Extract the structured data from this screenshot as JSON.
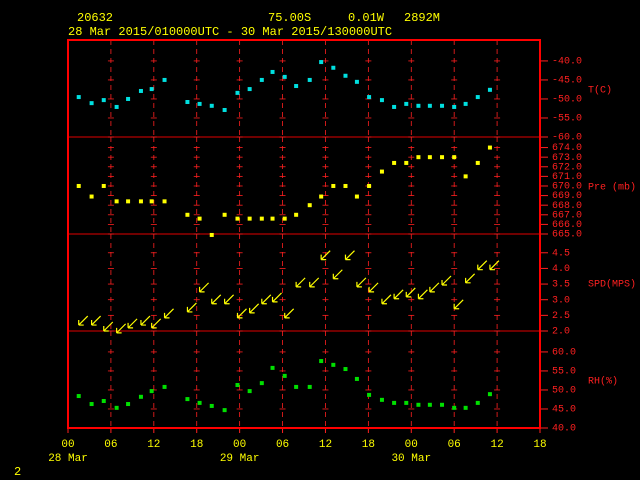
{
  "header": {
    "station": "20632",
    "lat": "75.00S",
    "lon": "0.01W",
    "elev": "2892M",
    "period": "28 Mar 2015/010000UTC - 30 Mar 2015/130000UTC"
  },
  "page_number": "2",
  "x_axis": {
    "xlim": [
      0,
      66
    ],
    "xticks": [
      {
        "value": 0,
        "label": "00"
      },
      {
        "value": 6,
        "label": "06"
      },
      12,
      18,
      {
        "value": 24,
        "label": "00"
      },
      {
        "value": 30,
        "label": "06"
      },
      {
        "value": 36,
        "label": "12"
      },
      {
        "value": 42,
        "label": "18"
      },
      {
        "value": 48,
        "label": "00"
      },
      {
        "value": 54,
        "label": "06"
      },
      {
        "value": 60,
        "label": "12"
      },
      {
        "value": 66,
        "label": "18"
      }
    ],
    "date_labels": [
      {
        "value": 0,
        "label": "28 Mar"
      },
      {
        "value": 24,
        "label": "29 Mar"
      },
      {
        "value": 48,
        "label": "30 Mar"
      }
    ]
  },
  "chart_data": [
    {
      "type": "scatter",
      "ylabel": "T(C)",
      "color": "#00e0e0",
      "ylim": [
        -60,
        -34.5
      ],
      "yticks": [
        {
          "value": -40,
          "label": "-40.0"
        },
        {
          "value": -45,
          "label": "-45.0"
        },
        {
          "value": -50,
          "label": "-50.0"
        },
        {
          "value": -55,
          "label": "-55.0"
        },
        {
          "value": -60,
          "label": "-60.0"
        }
      ],
      "x": [
        1.5,
        3.3,
        5.0,
        6.8,
        8.4,
        10.2,
        11.7,
        13.5,
        16.7,
        18.4,
        20.1,
        21.9,
        23.7,
        25.4,
        27.1,
        28.6,
        30.3,
        31.9,
        33.8,
        35.4,
        37.1,
        38.8,
        40.4,
        42.1,
        43.9,
        45.6,
        47.3,
        49.0,
        50.6,
        52.3,
        54.0,
        55.6,
        57.3,
        59.0
      ],
      "values": [
        -49.5,
        -51.1,
        -50.3,
        -52.1,
        -50.0,
        -47.9,
        -47.4,
        -45.0,
        -50.8,
        -51.3,
        -51.8,
        -52.9,
        -48.4,
        -47.4,
        -45.0,
        -42.9,
        -44.2,
        -46.6,
        -45.0,
        -40.3,
        -41.8,
        -43.9,
        -45.5,
        -49.5,
        -50.3,
        -52.1,
        -51.3,
        -51.8,
        -51.8,
        -51.8,
        -52.1,
        -51.3,
        -49.5,
        -47.6
      ]
    },
    {
      "type": "scatter",
      "ylabel": "Pre (mb)",
      "color": "#ffff00",
      "ylim": [
        665,
        675.1
      ],
      "yticks": [
        {
          "value": 674,
          "label": "674.0"
        },
        {
          "value": 673,
          "label": "673.0"
        },
        {
          "value": 672,
          "label": "672.0"
        },
        {
          "value": 671,
          "label": "671.0"
        },
        {
          "value": 670,
          "label": "670.0"
        },
        {
          "value": 669,
          "label": "669.0"
        },
        {
          "value": 668,
          "label": "668.0"
        },
        {
          "value": 667,
          "label": "667.0"
        },
        {
          "value": 666,
          "label": "666.0"
        },
        {
          "value": 665,
          "label": "665.0"
        }
      ],
      "x": [
        1.5,
        3.3,
        5.0,
        6.8,
        8.4,
        10.2,
        11.7,
        13.5,
        16.7,
        18.4,
        20.1,
        21.9,
        23.7,
        25.4,
        27.1,
        28.6,
        30.3,
        31.9,
        33.8,
        35.4,
        37.1,
        38.8,
        40.4,
        42.1,
        43.9,
        45.6,
        47.3,
        49.0,
        50.6,
        52.3,
        54.0,
        55.6,
        57.3,
        59.0
      ],
      "values": [
        670.0,
        668.9,
        670.0,
        668.4,
        668.4,
        668.4,
        668.4,
        668.4,
        667.0,
        666.6,
        664.9,
        667.0,
        666.6,
        666.6,
        666.6,
        666.6,
        666.6,
        667.0,
        668.0,
        668.9,
        670.0,
        670.0,
        668.9,
        670.0,
        671.5,
        672.4,
        672.4,
        673.0,
        673.0,
        673.0,
        673.0,
        671.0,
        672.4,
        674.0
      ]
    },
    {
      "type": "vector",
      "ylabel": "SPD(MPS)",
      "color": "#ffff00",
      "ylim": [
        2,
        5.1
      ],
      "yticks": [
        4.5,
        {
          "value": 4,
          "label": "4.0"
        },
        3.5,
        {
          "value": 3,
          "label": "3.0"
        },
        2.5,
        {
          "value": 2,
          "label": "2.0"
        }
      ],
      "x": [
        1.5,
        3.3,
        5.0,
        6.8,
        8.4,
        10.2,
        11.7,
        13.5,
        16.7,
        18.4,
        20.1,
        21.9,
        23.7,
        25.4,
        27.1,
        28.6,
        30.3,
        31.9,
        33.8,
        35.4,
        37.1,
        38.8,
        40.4,
        42.1,
        43.9,
        45.6,
        47.3,
        49.0,
        50.6,
        52.3,
        54.0,
        55.6,
        57.3,
        59.0
      ],
      "values": [
        2.19,
        2.19,
        2.0,
        1.94,
        2.1,
        2.19,
        2.1,
        2.42,
        2.61,
        3.25,
        2.87,
        2.87,
        2.42,
        2.58,
        2.87,
        2.93,
        2.42,
        3.41,
        3.41,
        4.28,
        3.67,
        4.28,
        3.41,
        3.25,
        2.87,
        3.03,
        3.09,
        3.03,
        3.25,
        3.47,
        2.71,
        3.54,
        3.96,
        3.96
      ]
    },
    {
      "type": "scatter",
      "ylabel": "RH(%)",
      "color": "#00e000",
      "ylim": [
        40,
        65.5
      ],
      "yticks": [
        {
          "value": 60,
          "label": "60.0"
        },
        {
          "value": 55,
          "label": "55.0"
        },
        {
          "value": 50,
          "label": "50.0"
        },
        {
          "value": 45,
          "label": "45.0"
        },
        {
          "value": 40,
          "label": "40.0"
        }
      ],
      "x": [
        1.5,
        3.3,
        5.0,
        6.8,
        8.4,
        10.2,
        11.7,
        13.5,
        16.7,
        18.4,
        20.1,
        21.9,
        23.7,
        25.4,
        27.1,
        28.6,
        30.3,
        31.9,
        33.8,
        35.4,
        37.1,
        38.8,
        40.4,
        42.1,
        43.9,
        45.6,
        47.3,
        49.0,
        50.6,
        52.3,
        54.0,
        55.6,
        57.3,
        59.0
      ],
      "values": [
        48.4,
        46.3,
        47.1,
        45.3,
        46.3,
        48.2,
        49.7,
        50.8,
        47.6,
        46.6,
        45.8,
        44.7,
        51.3,
        49.7,
        51.8,
        55.8,
        53.7,
        50.8,
        50.8,
        57.6,
        56.6,
        55.5,
        52.9,
        48.7,
        47.4,
        46.6,
        46.6,
        46.1,
        46.1,
        46.1,
        45.3,
        45.3,
        46.6,
        48.9
      ]
    }
  ]
}
